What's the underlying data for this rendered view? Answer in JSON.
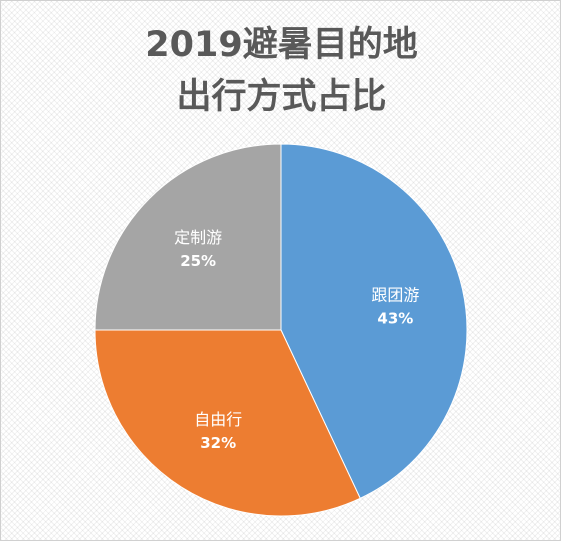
{
  "chart_data": {
    "type": "pie",
    "title_lines": [
      "2019避暑目的地",
      "出行方式占比"
    ],
    "slices": [
      {
        "label": "跟团游",
        "value": 43,
        "value_label": "43%",
        "color": "#5b9bd5"
      },
      {
        "label": "自由行",
        "value": 32,
        "value_label": "32%",
        "color": "#ed7d31"
      },
      {
        "label": "定制游",
        "value": 25,
        "value_label": "25%",
        "color": "#a5a5a5"
      }
    ],
    "start": "12 o'clock",
    "direction": "clockwise"
  }
}
